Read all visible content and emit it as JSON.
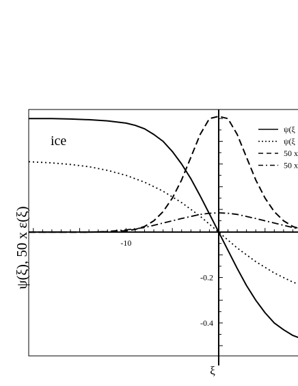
{
  "chart_data": {
    "type": "line",
    "title": "",
    "xlabel": "ξ",
    "ylabel": "ψ(ξ),   50 x ε(ξ)",
    "annotation": "ice",
    "xlim": [
      -20.5,
      9
    ],
    "ylim": [
      -0.545,
      0.54
    ],
    "x_ticks": [
      {
        "value": -10,
        "label": "-10"
      }
    ],
    "y_ticks": [
      {
        "value": -0.2,
        "label": "-0.2"
      },
      {
        "value": -0.4,
        "label": "-0.4"
      }
    ],
    "grid": false,
    "legend_placement": "top-right",
    "series": [
      {
        "name": "ψ(ξ",
        "style": "solid",
        "x": [
          -20.5,
          -18,
          -16,
          -14,
          -12,
          -10,
          -9,
          -8,
          -7,
          -6,
          -5,
          -4,
          -3,
          -2,
          -1,
          0,
          1,
          2,
          3,
          4,
          5,
          6,
          7,
          8,
          9
        ],
        "y": [
          0.5,
          0.5,
          0.498,
          0.495,
          0.49,
          0.48,
          0.47,
          0.455,
          0.43,
          0.4,
          0.355,
          0.3,
          0.235,
          0.16,
          0.08,
          0.0,
          -0.08,
          -0.16,
          -0.235,
          -0.3,
          -0.355,
          -0.4,
          -0.43,
          -0.455,
          -0.47
        ]
      },
      {
        "name": "ψ(ξ",
        "style": "dotted",
        "x": [
          -20.5,
          -18,
          -16,
          -14,
          -12,
          -10,
          -8,
          -6,
          -4,
          -2,
          0,
          2,
          4,
          6,
          8,
          9
        ],
        "y": [
          0.31,
          0.305,
          0.298,
          0.288,
          0.272,
          0.25,
          0.22,
          0.18,
          0.13,
          0.07,
          0.0,
          -0.07,
          -0.13,
          -0.18,
          -0.22,
          -0.235
        ]
      },
      {
        "name": "50 x",
        "style": "dashed",
        "x": [
          -20.5,
          -14,
          -12,
          -10,
          -9,
          -8,
          -7,
          -6,
          -5,
          -4,
          -3,
          -2,
          -1,
          0,
          1,
          2,
          3,
          4,
          5,
          6,
          7,
          8,
          9
        ],
        "y": [
          0.0,
          0.0,
          0.002,
          0.006,
          0.012,
          0.025,
          0.05,
          0.09,
          0.15,
          0.23,
          0.33,
          0.43,
          0.5,
          0.51,
          0.5,
          0.43,
          0.33,
          0.23,
          0.15,
          0.09,
          0.05,
          0.025,
          0.012
        ]
      },
      {
        "name": "50 x",
        "style": "dashdot",
        "x": [
          -20.5,
          -14,
          -12,
          -10,
          -8,
          -6,
          -4,
          -2,
          -1,
          0,
          1,
          2,
          4,
          6,
          8,
          9
        ],
        "y": [
          0.0,
          0.0,
          0.003,
          0.01,
          0.02,
          0.04,
          0.06,
          0.078,
          0.083,
          0.085,
          0.083,
          0.078,
          0.06,
          0.04,
          0.02,
          0.01
        ]
      }
    ]
  }
}
